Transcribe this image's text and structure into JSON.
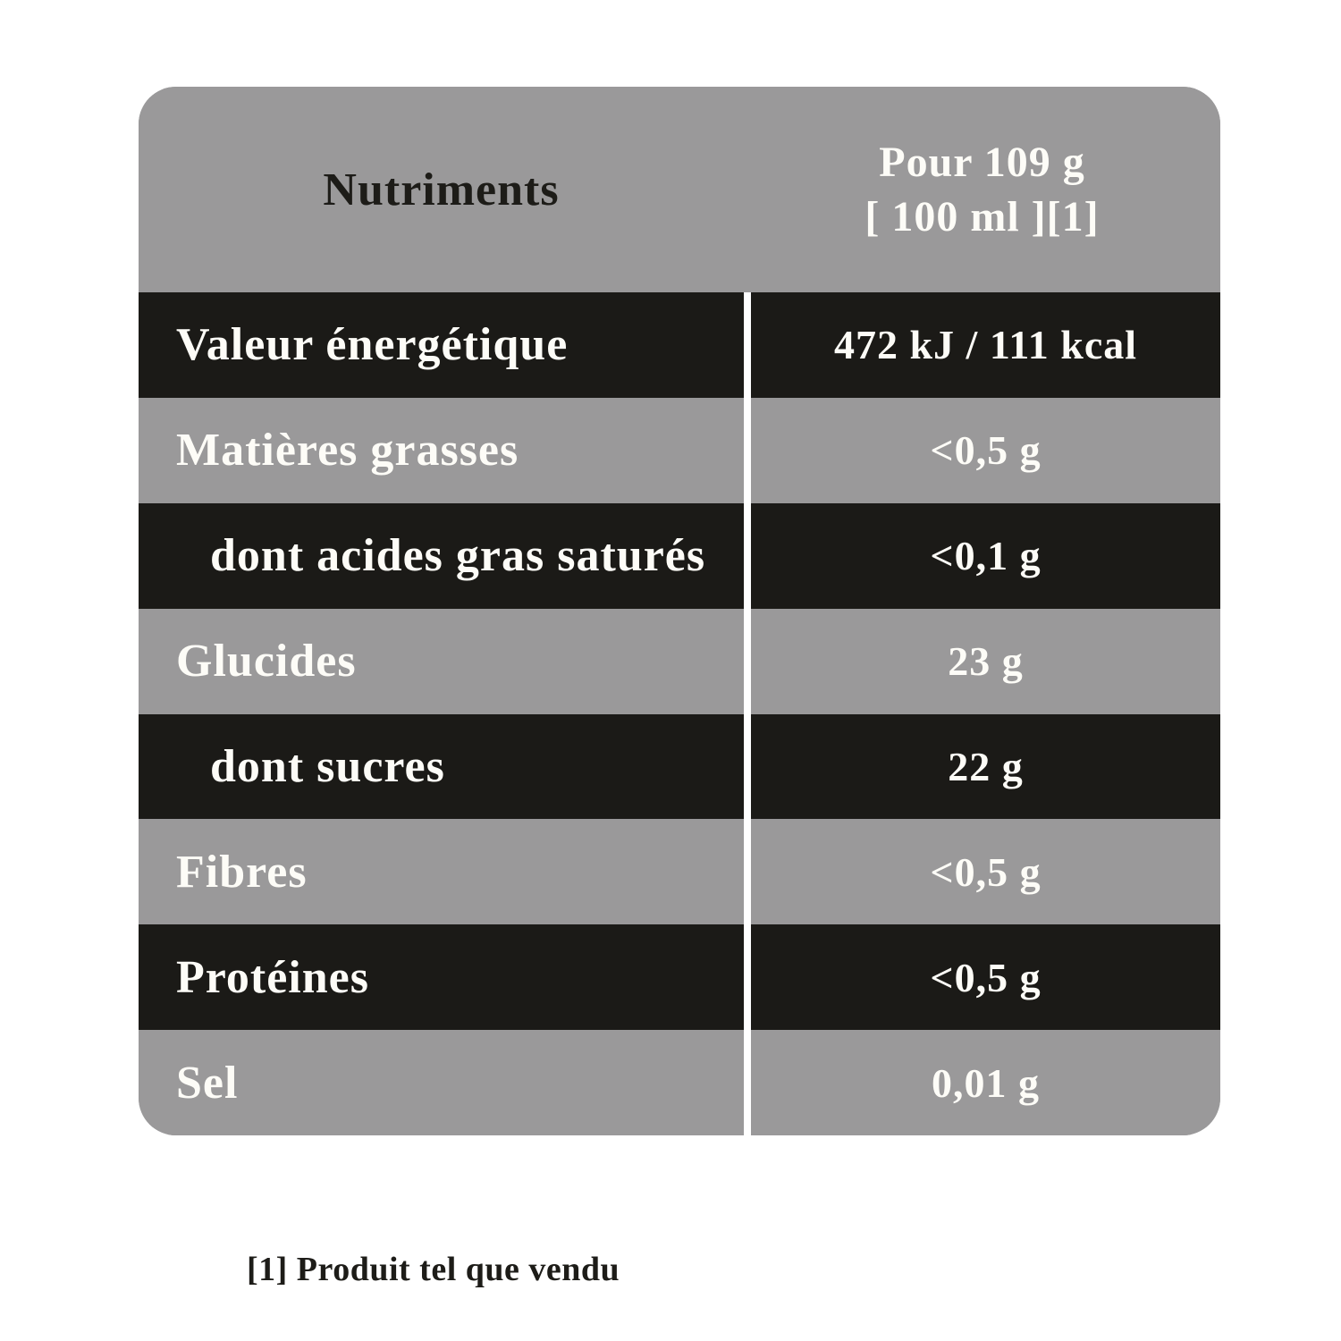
{
  "header": {
    "nutrients_label": "Nutriments",
    "serving_line1": "Pour 109 g",
    "serving_line2": "[ 100 ml ][1]"
  },
  "rows": [
    {
      "label": "Valeur énergétique",
      "value": "472 kJ / 111 kcal"
    },
    {
      "label": "Matières grasses",
      "value": "<0,5 g"
    },
    {
      "label": "dont acides gras saturés",
      "value": "<0,1 g"
    },
    {
      "label": "Glucides",
      "value": "23 g"
    },
    {
      "label": "dont sucres",
      "value": "22 g"
    },
    {
      "label": "Fibres",
      "value": "<0,5 g"
    },
    {
      "label": "Protéines",
      "value": "<0,5 g"
    },
    {
      "label": "Sel",
      "value": "0,01 g"
    }
  ],
  "footnote": "[1] Produit tel que vendu",
  "colors": {
    "dark_row": "#1b1a17",
    "light_row": "#9a999a",
    "text_on_dark": "#fdfcf7",
    "header_text": "#1d1c18",
    "divider": "#ffffff",
    "background": "#ffffff"
  }
}
